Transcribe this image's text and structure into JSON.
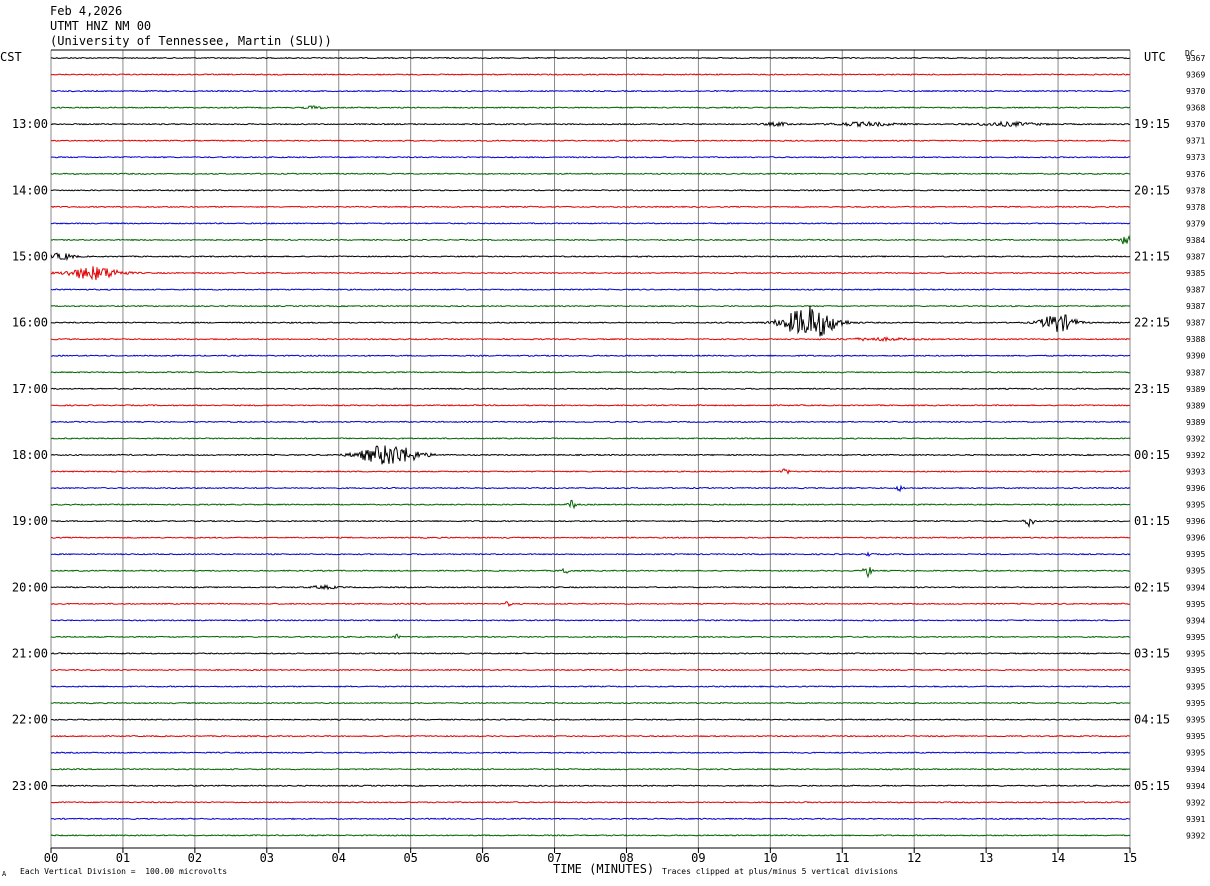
{
  "header": {
    "date": "Feb 4,2026",
    "station": "UTMT HNZ NM 00",
    "network": "(University of Tennessee, Martin (SLU))"
  },
  "left_tz": "CST",
  "right_tz": "UTC",
  "dc_label": "DC",
  "footer": {
    "scale_note": "Each Vertical Division =  100.00 microvolts",
    "clip_note": "Traces clipped at plus/minus 5 vertical divisions",
    "corner_mark": "A"
  },
  "colors": {
    "trace_cycle": [
      "#000000",
      "#e00000",
      "#0000cc",
      "#006400"
    ],
    "grid": "#888888"
  },
  "chart_data": {
    "type": "line",
    "title": "Feb 4,2026 UTMT HNZ NM 00",
    "xlabel": "TIME (MINUTES)",
    "ylabel": "",
    "x_range": [
      0,
      15
    ],
    "x_ticks": [
      "00",
      "01",
      "02",
      "03",
      "04",
      "05",
      "06",
      "07",
      "08",
      "09",
      "10",
      "11",
      "12",
      "13",
      "14",
      "15"
    ],
    "trace_count": 48,
    "minutes_per_trace": 15,
    "cst_hour_labels": [
      {
        "trace": 4,
        "label": "13:00"
      },
      {
        "trace": 8,
        "label": "14:00"
      },
      {
        "trace": 12,
        "label": "15:00"
      },
      {
        "trace": 16,
        "label": "16:00"
      },
      {
        "trace": 20,
        "label": "17:00"
      },
      {
        "trace": 24,
        "label": "18:00"
      },
      {
        "trace": 28,
        "label": "19:00"
      },
      {
        "trace": 32,
        "label": "20:00"
      },
      {
        "trace": 36,
        "label": "21:00"
      },
      {
        "trace": 40,
        "label": "22:00"
      },
      {
        "trace": 44,
        "label": "23:00"
      }
    ],
    "utc_hour_labels": [
      {
        "trace": 4,
        "label": "19:15"
      },
      {
        "trace": 8,
        "label": "20:15"
      },
      {
        "trace": 12,
        "label": "21:15"
      },
      {
        "trace": 16,
        "label": "22:15"
      },
      {
        "trace": 20,
        "label": "23:15"
      },
      {
        "trace": 24,
        "label": "00:15"
      },
      {
        "trace": 28,
        "label": "01:15"
      },
      {
        "trace": 32,
        "label": "02:15"
      },
      {
        "trace": 36,
        "label": "03:15"
      },
      {
        "trace": 40,
        "label": "04:15"
      },
      {
        "trace": 44,
        "label": "05:15"
      }
    ],
    "dc_offsets": [
      "9367",
      "9369",
      "9370",
      "9368",
      "9370",
      "9371",
      "9373",
      "9376",
      "9378",
      "9378",
      "9379",
      "9384",
      "9387",
      "9385",
      "9387",
      "9387",
      "9387",
      "9388",
      "9390",
      "9387",
      "9389",
      "9389",
      "9389",
      "9392",
      "9392",
      "9393",
      "9396",
      "9395",
      "9396",
      "9396",
      "9395",
      "9395",
      "9394",
      "9395",
      "9394",
      "9395",
      "9395",
      "9395",
      "9395",
      "9395",
      "9395",
      "9395",
      "9395",
      "9394",
      "9394",
      "9392",
      "9391",
      "9392"
    ],
    "events": [
      {
        "trace": 3,
        "minute": 3.65,
        "amp": 0.45,
        "dur": 0.25
      },
      {
        "trace": 4,
        "minute": 10.1,
        "amp": 0.45,
        "dur": 0.4
      },
      {
        "trace": 4,
        "minute": 11.3,
        "amp": 0.55,
        "dur": 1.0
      },
      {
        "trace": 4,
        "minute": 13.3,
        "amp": 0.55,
        "dur": 1.0
      },
      {
        "trace": 11,
        "minute": 14.95,
        "amp": 1.6,
        "dur": 0.15
      },
      {
        "trace": 12,
        "minute": 0.15,
        "amp": 1.0,
        "dur": 0.35
      },
      {
        "trace": 13,
        "minute": 0.6,
        "amp": 2.0,
        "dur": 0.8
      },
      {
        "trace": 16,
        "minute": 10.55,
        "amp": 5.0,
        "dur": 0.8
      },
      {
        "trace": 16,
        "minute": 14.0,
        "amp": 2.8,
        "dur": 0.5
      },
      {
        "trace": 17,
        "minute": 11.5,
        "amp": 0.4,
        "dur": 1.0
      },
      {
        "trace": 24,
        "minute": 4.7,
        "amp": 3.2,
        "dur": 0.9
      },
      {
        "trace": 25,
        "minute": 10.2,
        "amp": 1.0,
        "dur": 0.08
      },
      {
        "trace": 26,
        "minute": 11.8,
        "amp": 0.8,
        "dur": 0.08
      },
      {
        "trace": 27,
        "minute": 7.25,
        "amp": 1.3,
        "dur": 0.1
      },
      {
        "trace": 28,
        "minute": 13.6,
        "amp": 1.6,
        "dur": 0.1
      },
      {
        "trace": 30,
        "minute": 11.35,
        "amp": 0.8,
        "dur": 0.06
      },
      {
        "trace": 31,
        "minute": 11.35,
        "amp": 2.0,
        "dur": 0.08
      },
      {
        "trace": 31,
        "minute": 7.15,
        "amp": 1.2,
        "dur": 0.08
      },
      {
        "trace": 32,
        "minute": 3.8,
        "amp": 0.45,
        "dur": 0.4
      },
      {
        "trace": 33,
        "minute": 6.35,
        "amp": 0.7,
        "dur": 0.06
      },
      {
        "trace": 35,
        "minute": 4.8,
        "amp": 0.8,
        "dur": 0.06
      }
    ]
  }
}
